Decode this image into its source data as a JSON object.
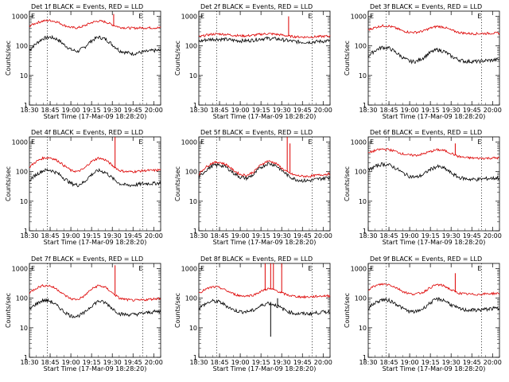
{
  "figure": {
    "ylabel": "Counts/sec",
    "xlabel": "Start Time (17-Mar-09 18:28:20)",
    "xticks": [
      "18:30",
      "18:45",
      "19:00",
      "19:15",
      "19:30",
      "19:45",
      "20:00"
    ],
    "yticks": [
      "1",
      "10",
      "100",
      "1000"
    ],
    "flag_marks": [
      "E",
      "E"
    ]
  },
  "colors": {
    "events": "#000000",
    "lld": "#dd0000",
    "axes": "#000000"
  },
  "chart_data": [
    {
      "type": "line",
      "title": "Det 1f BLACK = Events, RED = LLD",
      "xlim": [
        "18:30",
        "20:05"
      ],
      "ylim": [
        1,
        1000
      ],
      "yscale": "log",
      "dotted_vlines": [
        "18:43",
        "19:52"
      ],
      "x": [
        "18:30",
        "18:35",
        "18:40",
        "18:45",
        "18:50",
        "18:55",
        "19:00",
        "19:05",
        "19:10",
        "19:15",
        "19:20",
        "19:25",
        "19:30",
        "19:35",
        "19:40",
        "19:45",
        "19:50",
        "19:55",
        "20:00",
        "20:05"
      ],
      "series": [
        {
          "name": "Events",
          "values": [
            70,
            120,
            180,
            200,
            170,
            110,
            75,
            65,
            90,
            150,
            200,
            170,
            110,
            70,
            60,
            55,
            60,
            65,
            70,
            70
          ],
          "spikes": []
        },
        {
          "name": "LLD",
          "values": [
            470,
            600,
            700,
            730,
            650,
            500,
            420,
            410,
            480,
            620,
            700,
            650,
            520,
            430,
            410,
            400,
            410,
            410,
            410,
            410
          ],
          "spikes": [
            [
              "19:31",
              1200
            ]
          ]
        }
      ]
    },
    {
      "type": "line",
      "title": "Det 2f BLACK = Events, RED = LLD",
      "xlim": [
        "18:30",
        "20:05"
      ],
      "ylim": [
        1,
        1000
      ],
      "yscale": "log",
      "dotted_vlines": [
        "18:43",
        "19:52"
      ],
      "x": [
        "18:30",
        "18:35",
        "18:40",
        "18:45",
        "18:50",
        "18:55",
        "19:00",
        "19:05",
        "19:10",
        "19:15",
        "19:20",
        "19:25",
        "19:30",
        "19:35",
        "19:40",
        "19:45",
        "19:50",
        "19:55",
        "20:00",
        "20:05"
      ],
      "series": [
        {
          "name": "Events",
          "values": [
            140,
            160,
            170,
            170,
            165,
            155,
            150,
            150,
            160,
            175,
            180,
            175,
            165,
            150,
            140,
            135,
            135,
            140,
            145,
            150
          ],
          "spikes": []
        },
        {
          "name": "LLD",
          "values": [
            200,
            230,
            250,
            255,
            245,
            230,
            220,
            220,
            230,
            250,
            260,
            250,
            235,
            215,
            205,
            200,
            200,
            205,
            210,
            215
          ],
          "spikes": [
            [
              "19:35",
              1000
            ]
          ]
        }
      ]
    },
    {
      "type": "line",
      "title": "Det 3f BLACK = Events, RED = LLD",
      "xlim": [
        "18:30",
        "20:05"
      ],
      "ylim": [
        1,
        1000
      ],
      "yscale": "log",
      "dotted_vlines": [
        "18:43",
        "19:52"
      ],
      "x": [
        "18:30",
        "18:35",
        "18:40",
        "18:45",
        "18:50",
        "18:55",
        "19:00",
        "19:05",
        "19:10",
        "19:15",
        "19:20",
        "19:25",
        "19:30",
        "19:35",
        "19:40",
        "19:45",
        "19:50",
        "19:55",
        "20:00",
        "20:05"
      ],
      "series": [
        {
          "name": "Events",
          "values": [
            45,
            70,
            90,
            85,
            60,
            40,
            30,
            30,
            40,
            60,
            75,
            65,
            45,
            35,
            30,
            30,
            30,
            32,
            33,
            35
          ],
          "spikes": []
        },
        {
          "name": "LLD",
          "values": [
            350,
            420,
            480,
            470,
            400,
            320,
            290,
            290,
            320,
            400,
            460,
            430,
            340,
            290,
            270,
            260,
            260,
            265,
            270,
            270
          ],
          "spikes": []
        }
      ]
    },
    {
      "type": "line",
      "title": "Det 4f BLACK = Events, RED = LLD",
      "xlim": [
        "18:30",
        "20:05"
      ],
      "ylim": [
        1,
        1000
      ],
      "yscale": "log",
      "dotted_vlines": [
        "18:43",
        "19:52"
      ],
      "x": [
        "18:30",
        "18:35",
        "18:40",
        "18:45",
        "18:50",
        "18:55",
        "19:00",
        "19:05",
        "19:10",
        "19:15",
        "19:20",
        "19:25",
        "19:30",
        "19:35",
        "19:40",
        "19:45",
        "19:50",
        "19:55",
        "20:00",
        "20:05"
      ],
      "series": [
        {
          "name": "Events",
          "values": [
            50,
            80,
            110,
            115,
            90,
            60,
            40,
            35,
            45,
            80,
            110,
            95,
            60,
            40,
            35,
            35,
            38,
            40,
            40,
            42
          ],
          "spikes": []
        },
        {
          "name": "LLD",
          "values": [
            140,
            220,
            290,
            300,
            240,
            160,
            110,
            100,
            130,
            220,
            290,
            250,
            160,
            110,
            100,
            100,
            105,
            110,
            110,
            115
          ],
          "spikes": [
            [
              "19:32",
              1500
            ]
          ]
        }
      ]
    },
    {
      "type": "line",
      "title": "Det 5f BLACK = Events, RED = LLD",
      "xlim": [
        "18:30",
        "20:05"
      ],
      "ylim": [
        1,
        1000
      ],
      "yscale": "log",
      "dotted_vlines": [
        "18:43",
        "19:52"
      ],
      "x": [
        "18:30",
        "18:35",
        "18:40",
        "18:45",
        "18:50",
        "18:55",
        "19:00",
        "19:05",
        "19:10",
        "19:15",
        "19:20",
        "19:25",
        "19:30",
        "19:35",
        "19:40",
        "19:45",
        "19:50",
        "19:55",
        "20:00",
        "20:05"
      ],
      "series": [
        {
          "name": "Events",
          "values": [
            60,
            110,
            160,
            170,
            140,
            90,
            65,
            60,
            80,
            140,
            190,
            170,
            110,
            70,
            55,
            50,
            50,
            55,
            60,
            65
          ],
          "spikes": []
        },
        {
          "name": "LLD",
          "values": [
            80,
            140,
            200,
            210,
            170,
            110,
            80,
            75,
            100,
            170,
            230,
            200,
            130,
            90,
            75,
            70,
            70,
            75,
            80,
            85
          ],
          "spikes": [
            [
              "19:34",
              1500
            ],
            [
              "19:36",
              900
            ]
          ]
        }
      ]
    },
    {
      "type": "line",
      "title": "Det 6f BLACK = Events, RED = LLD",
      "xlim": [
        "18:30",
        "20:05"
      ],
      "ylim": [
        1,
        1000
      ],
      "yscale": "log",
      "dotted_vlines": [
        "18:43",
        "19:52"
      ],
      "x": [
        "18:30",
        "18:35",
        "18:40",
        "18:45",
        "18:50",
        "18:55",
        "19:00",
        "19:05",
        "19:10",
        "19:15",
        "19:20",
        "19:25",
        "19:30",
        "19:35",
        "19:40",
        "19:45",
        "19:50",
        "19:55",
        "20:00",
        "20:05"
      ],
      "series": [
        {
          "name": "Events",
          "values": [
            110,
            150,
            180,
            170,
            130,
            90,
            70,
            65,
            80,
            120,
            150,
            130,
            90,
            65,
            58,
            55,
            55,
            58,
            60,
            62
          ],
          "spikes": []
        },
        {
          "name": "LLD",
          "values": [
            420,
            520,
            580,
            560,
            480,
            400,
            360,
            360,
            400,
            480,
            550,
            520,
            420,
            330,
            300,
            290,
            285,
            285,
            290,
            290
          ],
          "spikes": [
            [
              "19:33",
              900
            ]
          ]
        }
      ]
    },
    {
      "type": "line",
      "title": "Det 7f BLACK = Events, RED = LLD",
      "xlim": [
        "18:30",
        "20:05"
      ],
      "ylim": [
        1,
        1000
      ],
      "yscale": "log",
      "dotted_vlines": [
        "18:43",
        "19:52"
      ],
      "x": [
        "18:30",
        "18:35",
        "18:40",
        "18:45",
        "18:50",
        "18:55",
        "19:00",
        "19:05",
        "19:10",
        "19:15",
        "19:20",
        "19:25",
        "19:30",
        "19:35",
        "19:40",
        "19:45",
        "19:50",
        "19:55",
        "20:00",
        "20:05"
      ],
      "series": [
        {
          "name": "Events",
          "values": [
            40,
            65,
            85,
            80,
            55,
            35,
            25,
            25,
            32,
            55,
            80,
            70,
            45,
            30,
            28,
            28,
            30,
            32,
            35,
            35
          ],
          "spikes": []
        },
        {
          "name": "LLD",
          "values": [
            150,
            220,
            270,
            260,
            200,
            130,
            95,
            90,
            120,
            200,
            270,
            230,
            150,
            100,
            90,
            85,
            85,
            90,
            95,
            100
          ],
          "spikes": [
            [
              "19:32",
              1300
            ]
          ]
        }
      ]
    },
    {
      "type": "line",
      "title": "Det 8f BLACK = Events, RED = LLD",
      "xlim": [
        "18:30",
        "20:05"
      ],
      "ylim": [
        1,
        1000
      ],
      "yscale": "log",
      "dotted_vlines": [
        "18:43",
        "19:52"
      ],
      "x": [
        "18:30",
        "18:35",
        "18:40",
        "18:45",
        "18:50",
        "18:55",
        "19:00",
        "19:05",
        "19:10",
        "19:15",
        "19:20",
        "19:25",
        "19:30",
        "19:35",
        "19:40",
        "19:45",
        "19:50",
        "19:55",
        "20:00",
        "20:05"
      ],
      "series": [
        {
          "name": "Events",
          "values": [
            45,
            65,
            80,
            75,
            55,
            40,
            35,
            35,
            40,
            55,
            70,
            60,
            45,
            35,
            30,
            30,
            30,
            32,
            34,
            35
          ],
          "spikes": [
            [
              "19:22",
              5
            ],
            [
              "19:27",
              100
            ]
          ]
        },
        {
          "name": "LLD",
          "values": [
            150,
            200,
            240,
            230,
            180,
            140,
            120,
            120,
            130,
            170,
            210,
            190,
            150,
            125,
            115,
            110,
            110,
            115,
            120,
            120
          ],
          "spikes": [
            [
              "19:18",
              1500
            ],
            [
              "19:22",
              1500
            ],
            [
              "19:24",
              1500
            ],
            [
              "19:30",
              1500
            ]
          ]
        }
      ]
    },
    {
      "type": "line",
      "title": "Det 9f BLACK = Events, RED = LLD",
      "xlim": [
        "18:30",
        "20:05"
      ],
      "ylim": [
        1,
        1000
      ],
      "yscale": "log",
      "dotted_vlines": [
        "18:43",
        "19:52"
      ],
      "x": [
        "18:30",
        "18:35",
        "18:40",
        "18:45",
        "18:50",
        "18:55",
        "19:00",
        "19:05",
        "19:10",
        "19:15",
        "19:20",
        "19:25",
        "19:30",
        "19:35",
        "19:40",
        "19:45",
        "19:50",
        "19:55",
        "20:00",
        "20:05"
      ],
      "series": [
        {
          "name": "Events",
          "values": [
            45,
            70,
            90,
            85,
            65,
            45,
            35,
            35,
            45,
            70,
            95,
            85,
            60,
            45,
            40,
            40,
            40,
            42,
            45,
            45
          ],
          "spikes": []
        },
        {
          "name": "LLD",
          "values": [
            200,
            260,
            300,
            290,
            230,
            170,
            140,
            140,
            160,
            230,
            290,
            260,
            190,
            150,
            140,
            135,
            135,
            140,
            145,
            145
          ],
          "spikes": [
            [
              "19:33",
              700
            ]
          ]
        }
      ]
    }
  ]
}
